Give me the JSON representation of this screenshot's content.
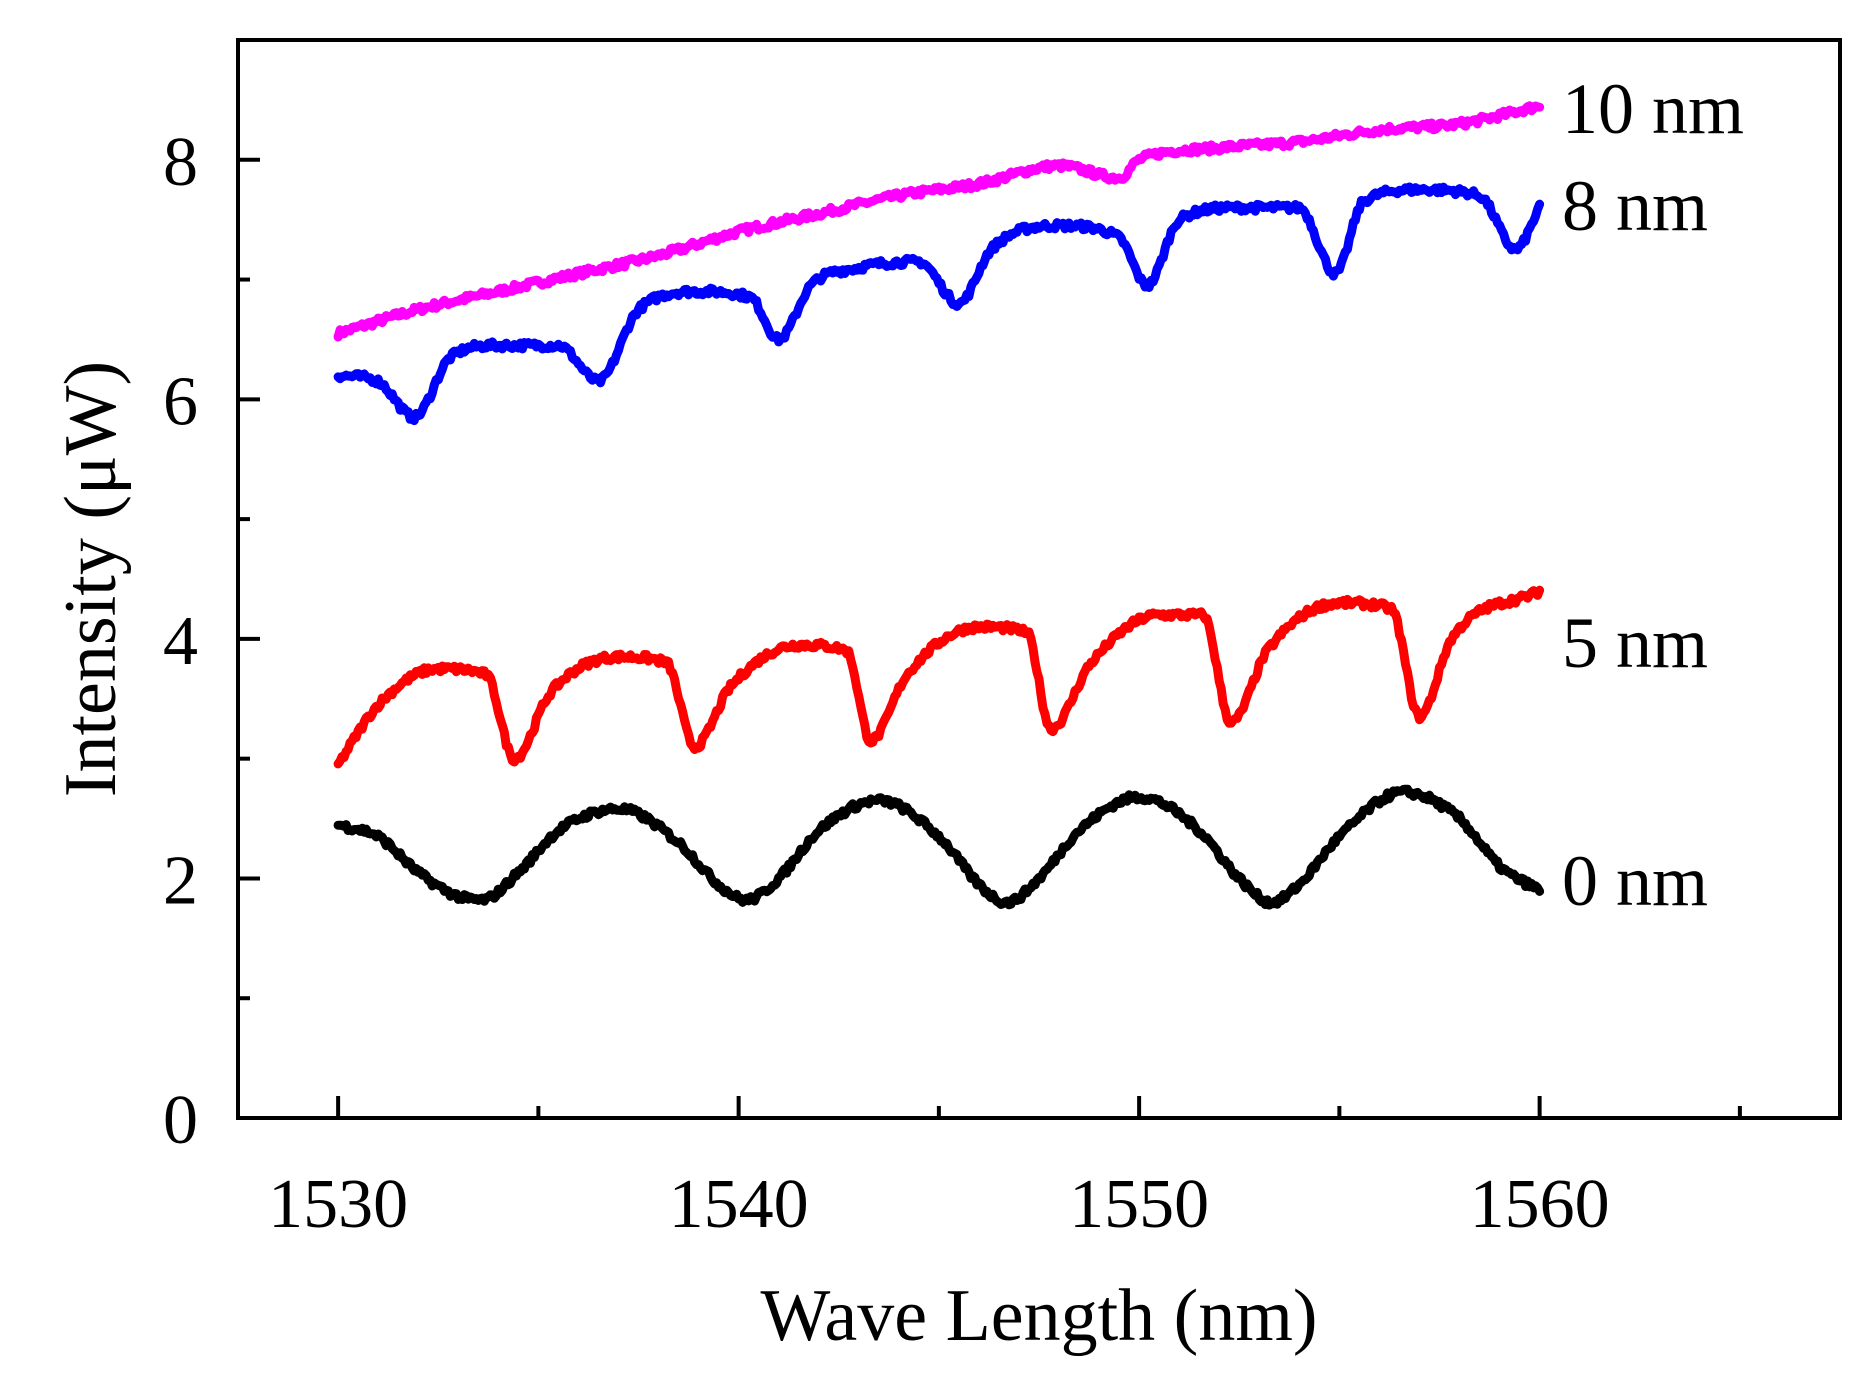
{
  "chart_data": {
    "type": "line",
    "title": "",
    "xlabel": "Wave Length (nm)",
    "ylabel": "Intensity (μW)",
    "xlim": [
      1527.5,
      1567.5
    ],
    "ylim": [
      0,
      9
    ],
    "x_major_ticks": [
      1530,
      1540,
      1550,
      1560
    ],
    "x_tick_labels": [
      "1530",
      "1540",
      "1550",
      "1560"
    ],
    "x_minor_ticks": [
      1535,
      1545,
      1555,
      1565
    ],
    "y_major_ticks": [
      0,
      2,
      4,
      6,
      8
    ],
    "y_tick_labels": [
      "0",
      "2",
      "4",
      "6",
      "8"
    ],
    "y_minor_ticks": [
      1,
      3,
      5,
      7
    ],
    "grid": false,
    "legend": "inline labels at right end of each series",
    "series": [
      {
        "name": "10 nm",
        "label": "10 nm",
        "color": "#ff00ff",
        "x": [
          1530,
          1532,
          1534,
          1536,
          1538,
          1540,
          1542,
          1544,
          1546,
          1548,
          1549.5,
          1550,
          1552,
          1554,
          1556,
          1558,
          1560
        ],
        "y": [
          6.55,
          6.75,
          6.9,
          7.05,
          7.2,
          7.4,
          7.55,
          7.7,
          7.8,
          7.95,
          7.85,
          8.0,
          8.1,
          8.15,
          8.25,
          8.3,
          8.45
        ]
      },
      {
        "name": "8 nm",
        "label": "8 nm",
        "color": "#0000ff",
        "x": [
          1530,
          1531,
          1531.9,
          1532.8,
          1534,
          1535.5,
          1536.5,
          1537.5,
          1539,
          1540.3,
          1541,
          1541.8,
          1543,
          1544.5,
          1545.5,
          1546.3,
          1548,
          1549.5,
          1550.2,
          1551,
          1552.5,
          1554,
          1554.9,
          1555.6,
          1557,
          1558.5,
          1559.4,
          1560
        ],
        "y": [
          6.2,
          6.15,
          5.85,
          6.35,
          6.45,
          6.45,
          6.15,
          6.75,
          6.9,
          6.85,
          6.5,
          6.95,
          7.1,
          7.15,
          6.8,
          7.25,
          7.45,
          7.35,
          6.95,
          7.5,
          7.6,
          7.6,
          7.05,
          7.65,
          7.75,
          7.7,
          7.25,
          7.6
        ]
      },
      {
        "name": "5 nm",
        "label": "5 nm",
        "color": "#ff0000",
        "x": [
          1530,
          1531,
          1532.5,
          1533.7,
          1534.4,
          1535.3,
          1537,
          1538.2,
          1538.9,
          1539.8,
          1541.5,
          1542.7,
          1543.3,
          1544.2,
          1546,
          1547.2,
          1547.8,
          1548.8,
          1550.5,
          1551.6,
          1552.3,
          1553.2,
          1555,
          1556.3,
          1557,
          1557.8,
          1560
        ],
        "y": [
          2.95,
          3.45,
          3.75,
          3.7,
          3.0,
          3.55,
          3.85,
          3.8,
          3.1,
          3.6,
          3.95,
          3.9,
          3.15,
          3.7,
          4.1,
          4.05,
          3.25,
          3.8,
          4.2,
          4.2,
          3.3,
          3.9,
          4.3,
          4.25,
          3.35,
          4.0,
          4.4
        ]
      },
      {
        "name": "0 nm",
        "label": "0 nm",
        "color": "#000000",
        "x": [
          1530,
          1531,
          1532,
          1533,
          1533.6,
          1534.5,
          1535.5,
          1537,
          1538.5,
          1539.5,
          1540.2,
          1541,
          1542,
          1543.5,
          1545,
          1546,
          1546.7,
          1547.5,
          1548.5,
          1550,
          1551.5,
          1552.5,
          1553.3,
          1554,
          1555,
          1556.6,
          1558,
          1559,
          1560
        ],
        "y": [
          2.45,
          2.35,
          2.05,
          1.85,
          1.82,
          2.05,
          2.4,
          2.58,
          2.3,
          1.95,
          1.82,
          2.0,
          2.4,
          2.65,
          2.35,
          1.95,
          1.8,
          2.0,
          2.4,
          2.68,
          2.4,
          2.0,
          1.8,
          1.95,
          2.35,
          2.72,
          2.5,
          2.1,
          1.9
        ]
      }
    ]
  }
}
